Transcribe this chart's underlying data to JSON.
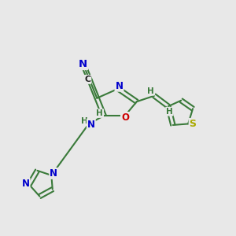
{
  "background_color": "#e8e8e8",
  "bond_color": "#3a7a3a",
  "bond_width": 1.5,
  "atom_colors": {
    "N": "#0000cc",
    "O": "#cc0000",
    "S": "#aaaa00",
    "C": "#222222",
    "H": "#3a7a3a"
  },
  "font_size": 8.5,
  "fig_width": 3.0,
  "fig_height": 3.0,
  "dpi": 100
}
